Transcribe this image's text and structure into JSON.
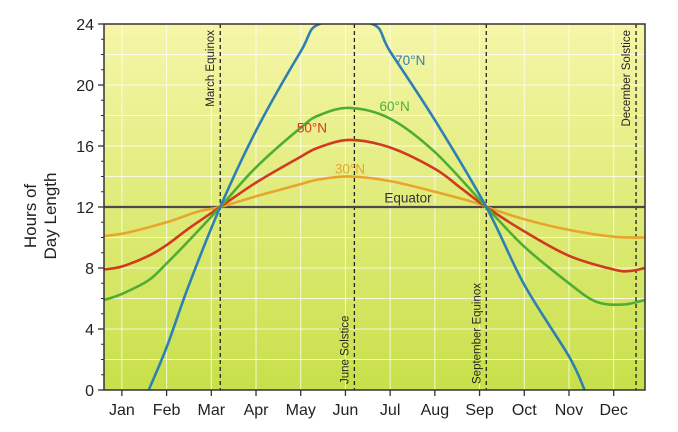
{
  "chart_data": {
    "type": "line",
    "title": "",
    "ylabel_lines": [
      "Hours of",
      "Day Length"
    ],
    "xlabel": "",
    "categories": [
      "Jan",
      "Feb",
      "Mar",
      "Apr",
      "May",
      "Jun",
      "Jul",
      "Aug",
      "Sep",
      "Oct",
      "Nov",
      "Dec"
    ],
    "ylim": [
      0,
      24
    ],
    "yticks": [
      0,
      4,
      8,
      12,
      16,
      20,
      24
    ],
    "grid": true,
    "x_units": "month position (Jan = 1)",
    "series": [
      {
        "name": "Equator",
        "color": "#4a4a4a",
        "points": [
          [
            0.6,
            12
          ],
          [
            12.7,
            12
          ]
        ]
      },
      {
        "name": "30°N",
        "color": "#e8a52e",
        "points": [
          [
            0.6,
            10.1
          ],
          [
            1.1,
            10.3
          ],
          [
            2.0,
            11.0
          ],
          [
            2.7,
            11.7
          ],
          [
            3.2,
            12.0
          ],
          [
            4.0,
            12.7
          ],
          [
            5.0,
            13.5
          ],
          [
            5.4,
            13.8
          ],
          [
            6.1,
            14.0
          ],
          [
            7.0,
            13.7
          ],
          [
            8.0,
            13.0
          ],
          [
            9.0,
            12.2
          ],
          [
            9.15,
            12.0
          ],
          [
            10.0,
            11.2
          ],
          [
            11.0,
            10.5
          ],
          [
            12.0,
            10.05
          ],
          [
            12.7,
            10.0
          ]
        ]
      },
      {
        "name": "50°N",
        "color": "#d03a1e",
        "points": [
          [
            0.6,
            7.9
          ],
          [
            1.0,
            8.1
          ],
          [
            1.6,
            8.8
          ],
          [
            2.0,
            9.5
          ],
          [
            2.5,
            10.6
          ],
          [
            3.2,
            12.0
          ],
          [
            4.0,
            13.6
          ],
          [
            5.0,
            15.3
          ],
          [
            5.4,
            15.9
          ],
          [
            6.1,
            16.4
          ],
          [
            7.0,
            15.9
          ],
          [
            8.0,
            14.5
          ],
          [
            8.6,
            13.2
          ],
          [
            9.15,
            12.0
          ],
          [
            10.0,
            10.4
          ],
          [
            11.0,
            8.8
          ],
          [
            12.0,
            7.9
          ],
          [
            12.35,
            7.8
          ],
          [
            12.7,
            8.0
          ]
        ]
      },
      {
        "name": "60°N",
        "color": "#4fae32",
        "points": [
          [
            0.6,
            5.9
          ],
          [
            1.0,
            6.3
          ],
          [
            1.6,
            7.2
          ],
          [
            2.0,
            8.3
          ],
          [
            2.5,
            9.8
          ],
          [
            3.2,
            12.0
          ],
          [
            4.0,
            14.6
          ],
          [
            5.0,
            17.2
          ],
          [
            5.4,
            18.0
          ],
          [
            6.1,
            18.5
          ],
          [
            7.0,
            17.8
          ],
          [
            8.0,
            15.6
          ],
          [
            9.15,
            12.0
          ],
          [
            10.0,
            9.4
          ],
          [
            11.0,
            7.0
          ],
          [
            11.6,
            5.8
          ],
          [
            12.2,
            5.6
          ],
          [
            12.7,
            5.9
          ]
        ]
      },
      {
        "name": "70°N",
        "color": "#2e7fb3",
        "points": [
          [
            1.6,
            0.0
          ],
          [
            2.0,
            2.8
          ],
          [
            2.5,
            6.9
          ],
          [
            3.2,
            12.0
          ],
          [
            4.0,
            17.0
          ],
          [
            5.0,
            22.2
          ],
          [
            5.42,
            24.0
          ],
          [
            6.6,
            24.0
          ],
          [
            7.0,
            22.2
          ],
          [
            8.0,
            17.7
          ],
          [
            9.15,
            12.0
          ],
          [
            10.0,
            6.9
          ],
          [
            11.0,
            2.2
          ],
          [
            11.35,
            0.0
          ]
        ]
      }
    ],
    "series_labels": [
      {
        "series": "70°N",
        "text": "70°N",
        "x": 7.45,
        "y": 21.3
      },
      {
        "series": "60°N",
        "text": "60°N",
        "x": 7.1,
        "y": 18.3
      },
      {
        "series": "50°N",
        "text": "50°N",
        "x": 5.25,
        "y": 16.9
      },
      {
        "series": "30°N",
        "text": "30°N",
        "x": 6.1,
        "y": 14.2
      },
      {
        "series": "Equator",
        "text": "Equator",
        "x": 7.4,
        "y": 12.3
      }
    ],
    "annotations": [
      {
        "text": "March Equinox",
        "x": 3.2
      },
      {
        "text": "June Solstice",
        "x": 6.2
      },
      {
        "text": "September Equinox",
        "x": 9.15
      },
      {
        "text": "December Solstice",
        "x": 12.5
      }
    ],
    "colors": {
      "plot_gradient_top": "#f6f6a8",
      "plot_gradient_bottom": "#c8e04a",
      "frame": "#333333",
      "text": "#222222"
    }
  }
}
